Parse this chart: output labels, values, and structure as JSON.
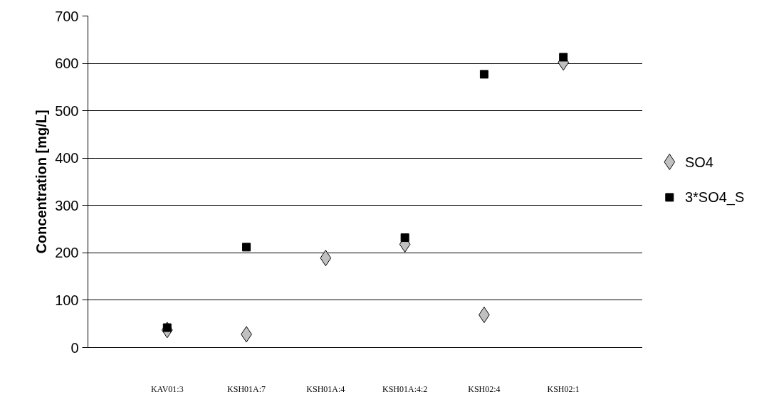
{
  "chart_data": {
    "type": "scatter",
    "ylabel": "Concentration [mg/L]",
    "categories": [
      "KAV01:3",
      "KSH01A:7",
      "KSH01A:4",
      "KSH01A:4:2",
      "KSH02:4",
      "KSH02:1"
    ],
    "series": [
      {
        "name": "SO4",
        "color": "#c0c0c0",
        "marker": "diamond",
        "values": [
          37,
          28,
          189,
          218,
          69,
          602
        ]
      },
      {
        "name": "3*SO4_S",
        "color": "#000000",
        "marker": "square",
        "values": [
          42,
          212,
          null,
          232,
          577,
          613
        ]
      }
    ],
    "ylim": [
      0,
      700
    ],
    "yticks": [
      0,
      100,
      200,
      300,
      400,
      500,
      600,
      700
    ],
    "grid": "y",
    "legend": "right"
  }
}
